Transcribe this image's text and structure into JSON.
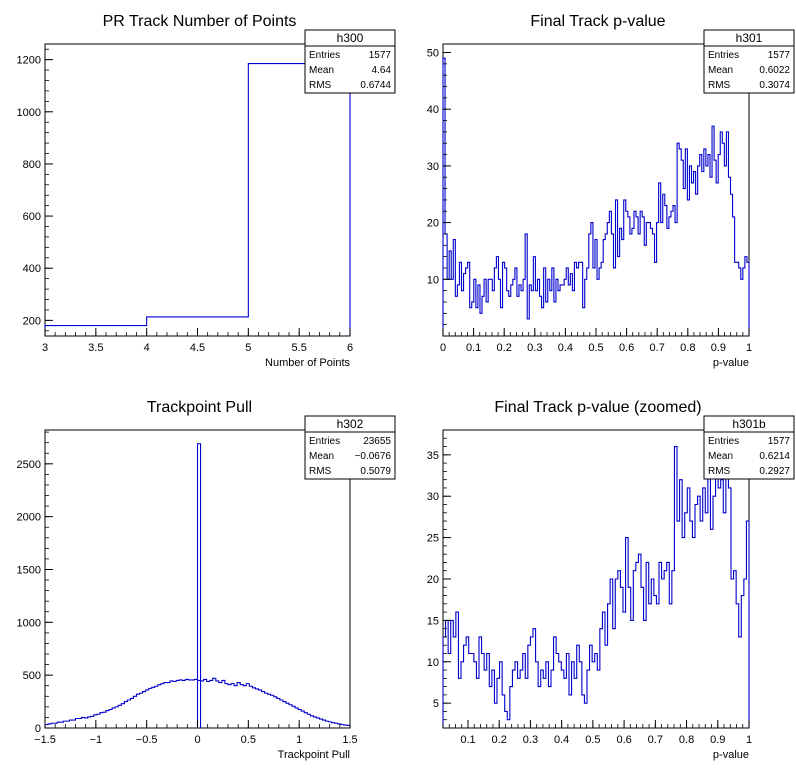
{
  "chart_data": [
    {
      "type": "bar",
      "title": "PR Track Number of Points",
      "xlabel": "Number of Points",
      "ylabel": "",
      "xlim": [
        3,
        6
      ],
      "ylim": [
        140,
        1260
      ],
      "xticks": [
        3,
        3.5,
        4,
        4.5,
        5,
        5.5,
        6
      ],
      "yticks": [
        200,
        400,
        600,
        800,
        1000,
        1200
      ],
      "bin_edges": [
        3,
        4,
        5,
        6
      ],
      "values": [
        180,
        213,
        1185
      ],
      "stats": {
        "name": "h300",
        "rows": [
          [
            "Entries",
            "1577"
          ],
          [
            "Mean",
            "4.64"
          ],
          [
            "RMS",
            "0.6744"
          ]
        ]
      }
    },
    {
      "type": "bar",
      "title": "Final Track p-value",
      "xlabel": "p-value",
      "ylabel": "",
      "xlim": [
        0,
        1
      ],
      "ylim": [
        0,
        51.5
      ],
      "xticks": [
        0,
        0.1,
        0.2,
        0.3,
        0.4,
        0.5,
        0.6,
        0.7,
        0.8,
        0.9,
        1
      ],
      "yticks": [
        10,
        20,
        30,
        40,
        50
      ],
      "bin_edges_range": [
        0,
        1
      ],
      "values": [
        49,
        18,
        10,
        15,
        10,
        17,
        7,
        9,
        13,
        8,
        11,
        12,
        13,
        5,
        6,
        10,
        5,
        9,
        4,
        7,
        10,
        6,
        10,
        10,
        8,
        12,
        14,
        10,
        5,
        13,
        12,
        8,
        7,
        9,
        10,
        12,
        7,
        9,
        8,
        10,
        18,
        3,
        9,
        8,
        14,
        8,
        10,
        7,
        5,
        12,
        6,
        10,
        8,
        12,
        6,
        10,
        8,
        9,
        9,
        10,
        12,
        9,
        11,
        8,
        13,
        12,
        13,
        13,
        5,
        10,
        12,
        18,
        20,
        12,
        17,
        10,
        12,
        13,
        17,
        18,
        20,
        22,
        18,
        12,
        24,
        14,
        19,
        17,
        24,
        22,
        21,
        18,
        19,
        22,
        21,
        18,
        22,
        21,
        16,
        20,
        20,
        19,
        18,
        13,
        20,
        27,
        20,
        25,
        23,
        19,
        21,
        22,
        23,
        20,
        34,
        33,
        31,
        26,
        33,
        24,
        30,
        27,
        29,
        25,
        30,
        32,
        29,
        33,
        30,
        32,
        28,
        37,
        31,
        27,
        32,
        36,
        34,
        30,
        36,
        28,
        25,
        21,
        13,
        13,
        12,
        10,
        12,
        14,
        13
      ],
      "stats": {
        "name": "h301",
        "rows": [
          [
            "Entries",
            "1577"
          ],
          [
            "Mean",
            "0.6022"
          ],
          [
            "RMS",
            "0.3074"
          ]
        ]
      }
    },
    {
      "type": "bar",
      "title": "Trackpoint Pull",
      "xlabel": "Trackpoint Pull",
      "ylabel": "",
      "xlim": [
        -1.5,
        1.5
      ],
      "ylim": [
        0,
        2820
      ],
      "xticks": [
        -1.5,
        -1,
        -0.5,
        0,
        0.5,
        1,
        1.5
      ],
      "yticks": [
        0,
        500,
        1000,
        1500,
        2000,
        2500
      ],
      "spike": {
        "x": 0.0,
        "width": 0.03,
        "value": 2690
      },
      "bin_edges_range": [
        -1.5,
        1.5
      ],
      "values": [
        32,
        38,
        45,
        45,
        55,
        55,
        65,
        65,
        75,
        75,
        90,
        90,
        100,
        95,
        105,
        110,
        125,
        130,
        145,
        150,
        165,
        175,
        190,
        200,
        215,
        230,
        250,
        265,
        280,
        300,
        320,
        330,
        345,
        360,
        375,
        385,
        395,
        410,
        420,
        430,
        430,
        445,
        440,
        450,
        455,
        450,
        460,
        455,
        455,
        460,
        450,
        445,
        460,
        440,
        450,
        470,
        445,
        430,
        450,
        420,
        410,
        420,
        400,
        430,
        410,
        400,
        420,
        395,
        380,
        370,
        360,
        345,
        330,
        320,
        310,
        295,
        280,
        265,
        250,
        235,
        220,
        205,
        190,
        175,
        160,
        145,
        130,
        115,
        105,
        95,
        85,
        75,
        65,
        58,
        50,
        45,
        38,
        32,
        28,
        25
      ],
      "stats": {
        "name": "h302",
        "rows": [
          [
            "Entries",
            "23655"
          ],
          [
            "Mean",
            "−0.0676"
          ],
          [
            "RMS",
            "0.5079"
          ]
        ]
      }
    },
    {
      "type": "bar",
      "title": "Final Track p-value (zoomed)",
      "xlabel": "p-value",
      "ylabel": "",
      "xlim": [
        0.02,
        1
      ],
      "ylim": [
        2,
        38
      ],
      "xticks": [
        0.1,
        0.2,
        0.3,
        0.4,
        0.5,
        0.6,
        0.7,
        0.8,
        0.9,
        1
      ],
      "yticks": [
        5,
        10,
        15,
        20,
        25,
        30,
        35
      ],
      "bin_edges_range": [
        0.02,
        1
      ],
      "values": [
        13,
        15,
        11,
        15,
        13,
        16,
        8,
        10,
        12,
        13,
        11,
        11,
        10,
        8,
        13,
        11,
        9,
        11,
        7,
        9,
        5,
        8,
        10,
        6,
        4,
        3,
        7,
        9,
        10,
        8,
        9,
        11,
        8,
        12,
        13,
        14,
        10,
        7,
        9,
        8,
        10,
        7,
        9,
        13,
        11,
        10,
        9,
        8,
        11,
        6,
        10,
        8,
        12,
        10,
        6,
        5,
        9,
        12,
        10,
        11,
        9,
        14,
        16,
        12,
        17,
        20,
        14,
        20,
        21,
        19,
        16,
        25,
        19,
        15,
        21,
        22,
        23,
        19,
        15,
        22,
        17,
        20,
        18,
        17,
        22,
        20,
        21,
        22,
        17,
        21,
        36,
        27,
        32,
        25,
        28,
        31,
        27,
        25,
        29,
        30,
        27,
        31,
        28,
        33,
        26,
        30,
        33,
        31,
        32,
        28,
        35,
        31,
        20,
        21,
        17,
        13,
        18,
        20,
        27
      ],
      "stats": {
        "name": "h301b",
        "rows": [
          [
            "Entries",
            "1577"
          ],
          [
            "Mean",
            "0.6214"
          ],
          [
            "RMS",
            "0.2927"
          ]
        ]
      }
    }
  ]
}
